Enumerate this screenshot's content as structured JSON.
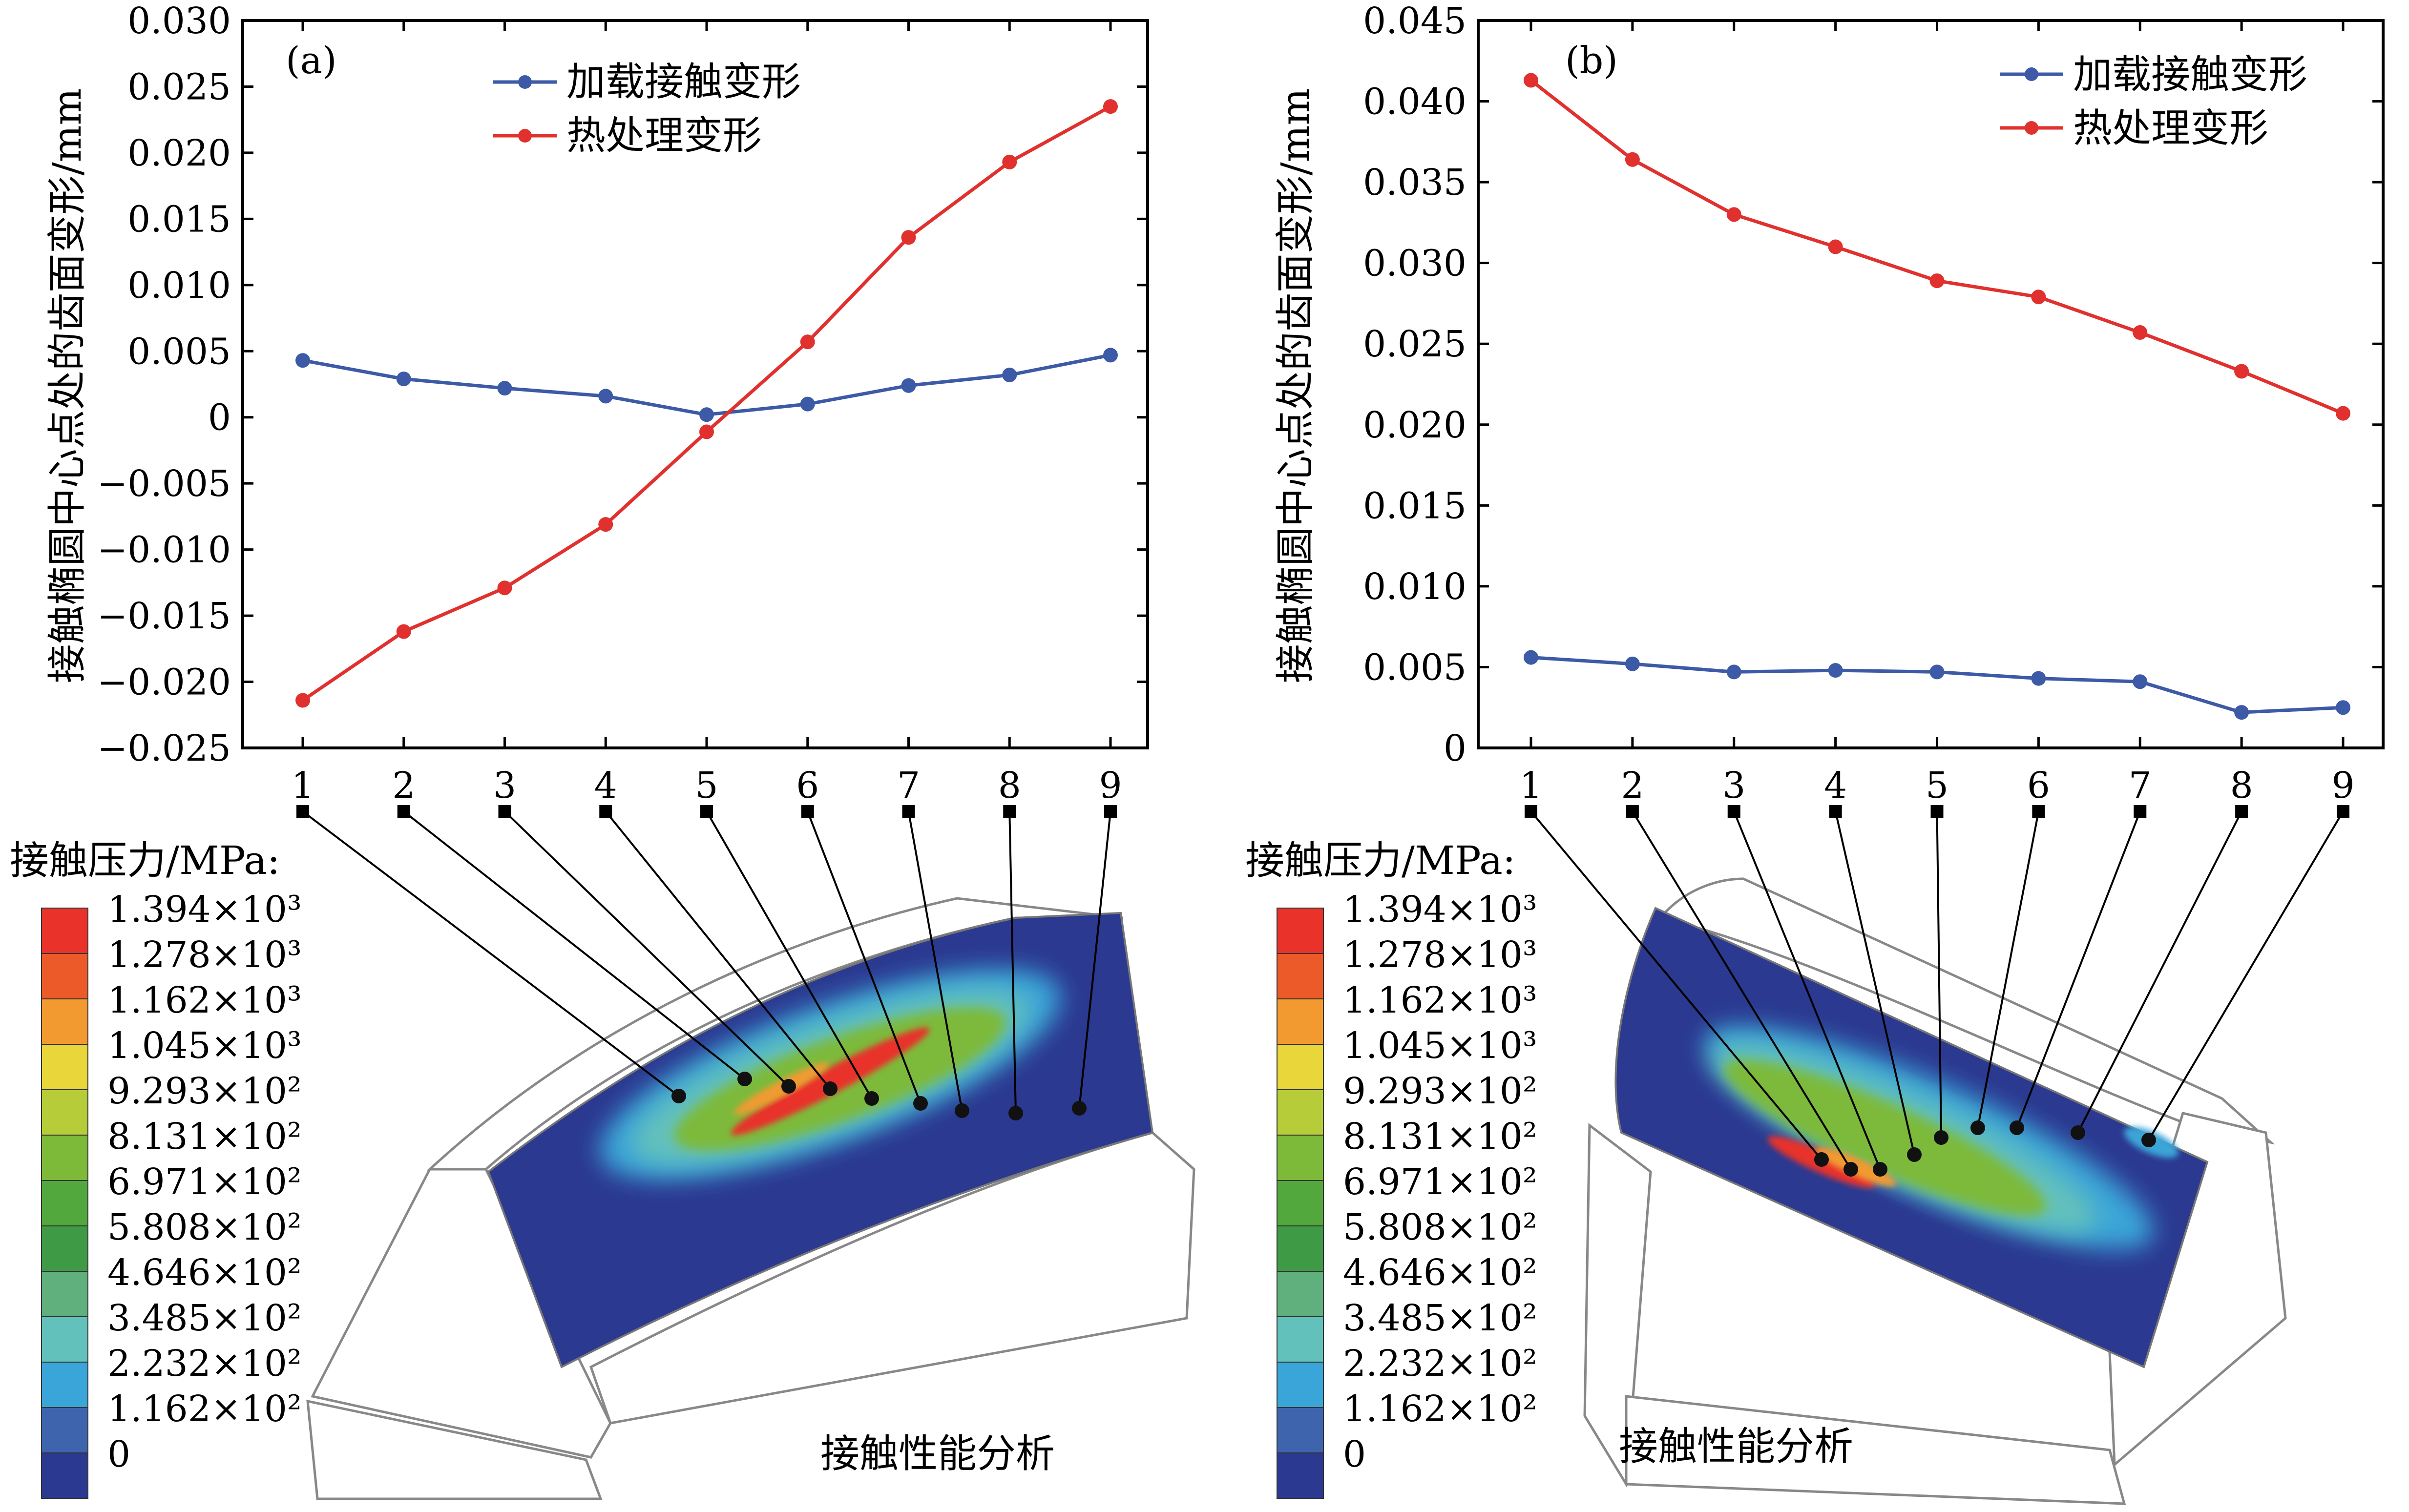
{
  "figure": {
    "colorbar_title": "接触压力/MPa:",
    "colorbar_labels": [
      "1.394×10³",
      "1.278×10³",
      "1.162×10³",
      "1.045×10³",
      "9.293×10²",
      "8.131×10²",
      "6.971×10²",
      "5.808×10²",
      "4.646×10²",
      "3.485×10²",
      "2.232×10²",
      "1.162×10²",
      "0"
    ],
    "colorbar_colors": [
      "#e8322a",
      "#ec5a2a",
      "#f29a30",
      "#e8d63a",
      "#b6cc38",
      "#7dba3a",
      "#52a83c",
      "#3f9a46",
      "#5fb07c",
      "#63c1bb",
      "#3aa5d8",
      "#3f64ae",
      "#2b3990"
    ],
    "contact_label": "接触性能分析",
    "series_colors": {
      "loaded": "#3c5aa6",
      "heat": "#e0312e"
    }
  },
  "chart_data": [
    {
      "type": "line",
      "panel": "(a)",
      "ylabel": "接触椭圆中心点处的齿面变形/mm",
      "categories": [
        "1",
        "2",
        "3",
        "4",
        "5",
        "6",
        "7",
        "8",
        "9"
      ],
      "ylim": [
        -0.025,
        0.03
      ],
      "yticks": [
        -0.025,
        -0.02,
        -0.015,
        -0.01,
        -0.005,
        0,
        0.005,
        0.01,
        0.015,
        0.02,
        0.025,
        0.03
      ],
      "ytick_labels": [
        "−0.025",
        "−0.020",
        "−0.015",
        "−0.010",
        "−0.005",
        "0",
        "0.005",
        "0.010",
        "0.015",
        "0.020",
        "0.025",
        "0.030"
      ],
      "series": [
        {
          "name": "加载接触变形",
          "values": [
            0.0043,
            0.0029,
            0.0022,
            0.0016,
            0.0002,
            0.001,
            0.0024,
            0.0032,
            0.0047
          ]
        },
        {
          "name": "热处理变形",
          "values": [
            -0.0214,
            -0.0162,
            -0.0129,
            -0.0081,
            -0.0011,
            0.0057,
            0.0136,
            0.0193,
            0.0235
          ]
        }
      ]
    },
    {
      "type": "line",
      "panel": "(b)",
      "ylabel": "接触椭圆中心点处的齿面变形/mm",
      "categories": [
        "1",
        "2",
        "3",
        "4",
        "5",
        "6",
        "7",
        "8",
        "9"
      ],
      "ylim": [
        0,
        0.045
      ],
      "yticks": [
        0,
        0.005,
        0.01,
        0.015,
        0.02,
        0.025,
        0.03,
        0.035,
        0.04,
        0.045
      ],
      "ytick_labels": [
        "0",
        "0.005",
        "0.010",
        "0.015",
        "0.020",
        "0.025",
        "0.030",
        "0.035",
        "0.040",
        "0.045"
      ],
      "series": [
        {
          "name": "加载接触变形",
          "values": [
            0.0056,
            0.0052,
            0.0047,
            0.0048,
            0.0047,
            0.0043,
            0.0041,
            0.0022,
            0.0025
          ]
        },
        {
          "name": "热处理变形",
          "values": [
            0.0413,
            0.0364,
            0.033,
            0.031,
            0.0289,
            0.0279,
            0.0257,
            0.0233,
            0.0207
          ]
        }
      ]
    }
  ]
}
